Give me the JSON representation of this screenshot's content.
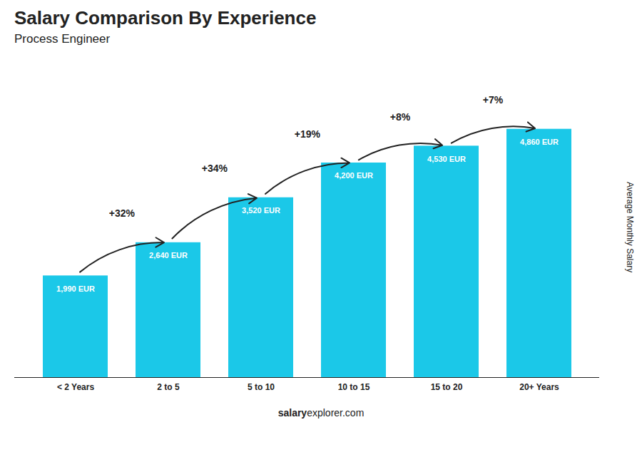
{
  "chart_data": {
    "type": "bar",
    "title": "Salary Comparison By Experience",
    "subtitle": "Process Engineer",
    "categories": [
      "< 2 Years",
      "2 to 5",
      "5 to 10",
      "10 to 15",
      "15 to 20",
      "20+ Years"
    ],
    "values": [
      1990,
      2640,
      3520,
      4200,
      4530,
      4860
    ],
    "value_labels": [
      "1,990 EUR",
      "2,640 EUR",
      "3,520 EUR",
      "4,200 EUR",
      "4,530 EUR",
      "4,860 EUR"
    ],
    "data_labels": true,
    "annotations": [
      "+32%",
      "+34%",
      "+19%",
      "+8%",
      "+7%"
    ],
    "ylabel": "Average Monthly Salary",
    "watermark": [
      "salary",
      "explorer.com"
    ],
    "color": "#1bc8e8",
    "ylim": [
      0,
      6000
    ],
    "tick_labels": "x",
    "grid": false
  }
}
